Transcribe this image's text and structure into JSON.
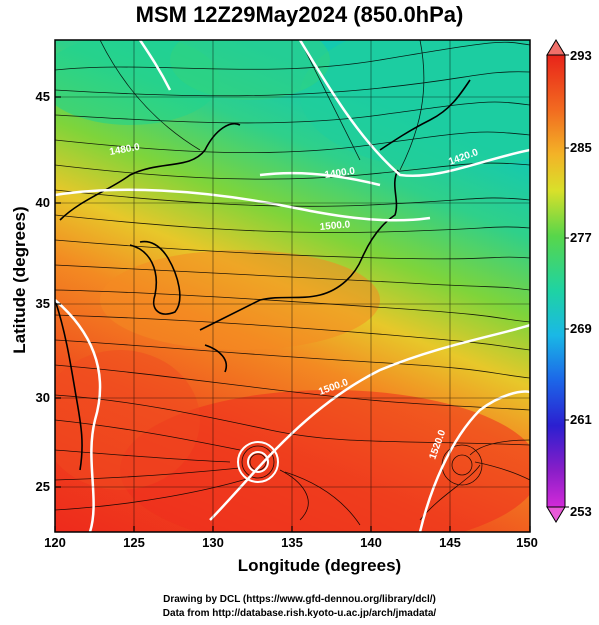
{
  "title": "MSM 12Z29May2024 (850.0hPa)",
  "x_axis": {
    "label": "Longitude (degrees)",
    "ticks": [
      "120",
      "125",
      "130",
      "135",
      "140",
      "145",
      "150"
    ]
  },
  "y_axis": {
    "label": "Latitude  (degrees)",
    "ticks": [
      "45",
      "40",
      "35",
      "30",
      "25"
    ]
  },
  "colorbar": {
    "ticks": [
      "293",
      "285",
      "277",
      "269",
      "261",
      "253"
    ]
  },
  "contour_labels": [
    "1400.0",
    "1420.0",
    "1500.0",
    "1500.0",
    "1520.0",
    "1480.0"
  ],
  "credits": {
    "line1": "Drawing by DCL (https://www.gfd-dennou.org/library/dcl/)",
    "line2": "Data from http://database.rish.kyoto-u.ac.jp/arch/jmadata/"
  },
  "colors": {
    "warm": "#e8381e",
    "mid": "#f2a623",
    "cool": "#22d39a",
    "frame": "#000000"
  }
}
